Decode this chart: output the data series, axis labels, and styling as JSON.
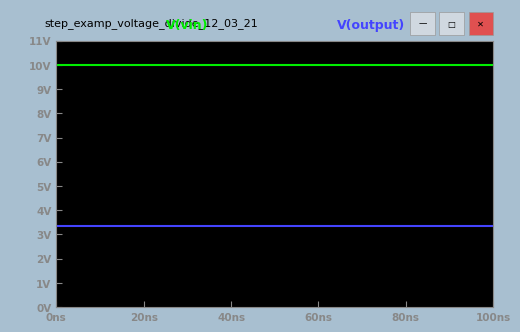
{
  "title_bar_text": "step_examp_voltage_divide_12_03_21",
  "legend_labels": [
    "V(vin)",
    "V(output)"
  ],
  "legend_colors": [
    "#00ee00",
    "#4444ff"
  ],
  "vin_value": 10.0,
  "vout_value": 3.33,
  "xlim": [
    0,
    100
  ],
  "ylim": [
    0,
    11
  ],
  "xticks": [
    0,
    20,
    40,
    60,
    80,
    100
  ],
  "xtick_labels": [
    "0ns",
    "20ns",
    "40ns",
    "60ns",
    "80ns",
    "100ns"
  ],
  "yticks": [
    0,
    1,
    2,
    3,
    4,
    5,
    6,
    7,
    8,
    9,
    10,
    11
  ],
  "ytick_labels": [
    "0V",
    "1V",
    "2V",
    "3V",
    "4V",
    "5V",
    "6V",
    "7V",
    "8V",
    "9V",
    "10V",
    "11V"
  ],
  "bg_color": "#000000",
  "tick_label_color": "#ffffff",
  "spine_color": "#888888",
  "outer_bg": "#a8bfd0",
  "titlebar_bg": "#b8cfe0",
  "titlebar_text_color": "#000000",
  "window_border_color": "#8aacbe"
}
